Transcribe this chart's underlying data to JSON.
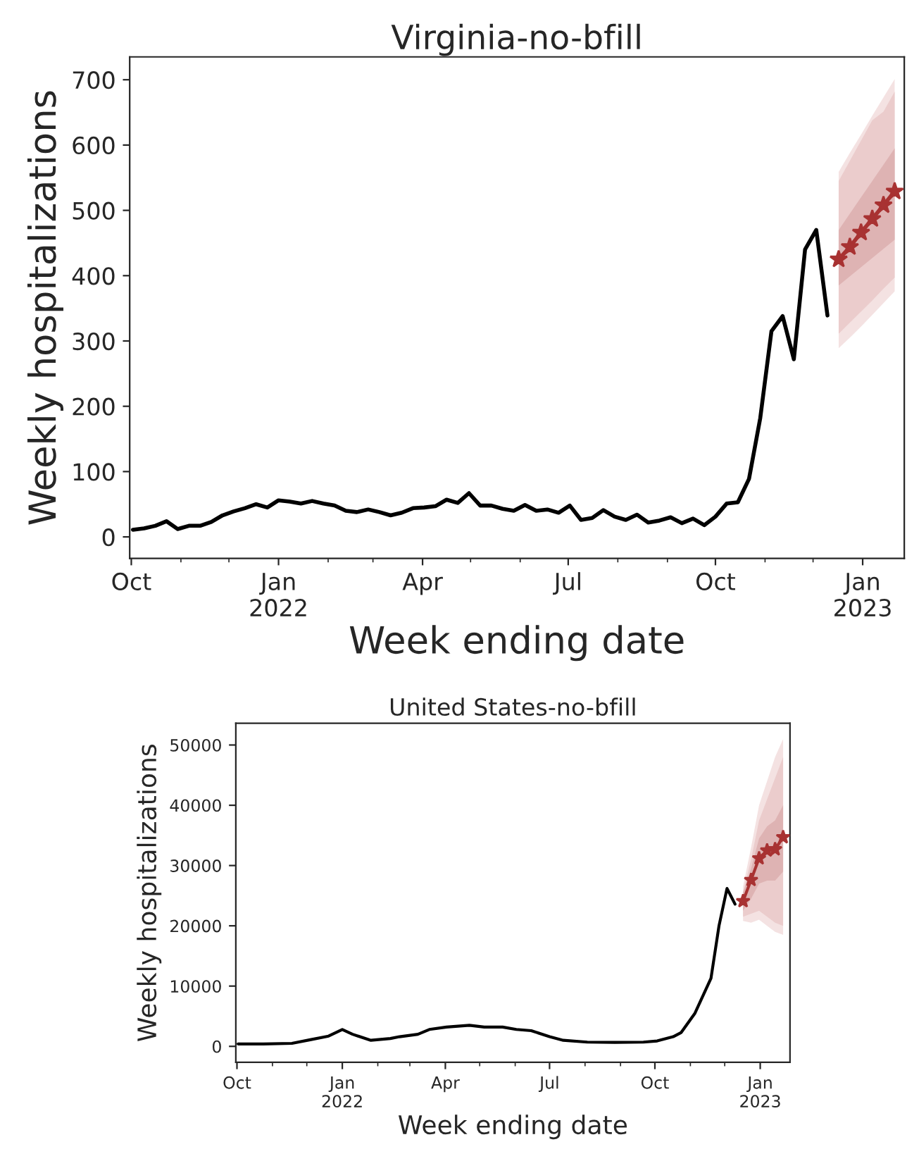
{
  "chart_data": [
    {
      "type": "line",
      "title": "Virginia-no-bfill",
      "xlabel": "Week ending date",
      "ylabel": "Weekly hospitalizations",
      "xlim": [
        "2021-09-30",
        "2023-01-27"
      ],
      "ylim": [
        -33,
        735
      ],
      "xticks": [
        {
          "value": "2021-10-01",
          "label": "Oct"
        },
        {
          "value": "2022-01-01",
          "label": "Jan\n2022"
        },
        {
          "value": "2022-04-01",
          "label": "Apr"
        },
        {
          "value": "2022-07-01",
          "label": "Jul"
        },
        {
          "value": "2022-10-01",
          "label": "Oct"
        },
        {
          "value": "2023-01-01",
          "label": "Jan\n2023"
        }
      ],
      "yticks": [
        0,
        100,
        200,
        300,
        400,
        500,
        600,
        700
      ],
      "grid": false,
      "legend": false,
      "series": [
        {
          "color": "#000000",
          "marker": "none",
          "x": [
            "2021-10-02",
            "2021-10-09",
            "2021-10-16",
            "2021-10-23",
            "2021-10-30",
            "2021-11-06",
            "2021-11-13",
            "2021-11-20",
            "2021-11-27",
            "2021-12-04",
            "2021-12-11",
            "2021-12-18",
            "2021-12-25",
            "2022-01-01",
            "2022-01-08",
            "2022-01-15",
            "2022-01-22",
            "2022-01-29",
            "2022-02-05",
            "2022-02-12",
            "2022-02-19",
            "2022-02-26",
            "2022-03-05",
            "2022-03-12",
            "2022-03-19",
            "2022-03-26",
            "2022-04-02",
            "2022-04-09",
            "2022-04-16",
            "2022-04-23",
            "2022-04-30",
            "2022-05-07",
            "2022-05-14",
            "2022-05-21",
            "2022-05-28",
            "2022-06-04",
            "2022-06-11",
            "2022-06-18",
            "2022-06-25",
            "2022-07-02",
            "2022-07-09",
            "2022-07-16",
            "2022-07-23",
            "2022-07-30",
            "2022-08-06",
            "2022-08-13",
            "2022-08-20",
            "2022-08-27",
            "2022-09-03",
            "2022-09-10",
            "2022-09-17",
            "2022-09-24",
            "2022-10-01",
            "2022-10-08",
            "2022-10-15",
            "2022-10-22",
            "2022-10-29",
            "2022-11-05",
            "2022-11-12",
            "2022-11-19",
            "2022-11-26",
            "2022-12-03",
            "2022-12-10"
          ],
          "values": [
            11,
            13,
            17,
            24,
            12,
            17,
            17,
            23,
            33,
            39,
            44,
            50,
            45,
            56,
            54,
            51,
            55,
            51,
            48,
            40,
            38,
            42,
            38,
            33,
            37,
            44,
            45,
            47,
            57,
            52,
            67,
            48,
            48,
            43,
            40,
            49,
            40,
            42,
            37,
            48,
            26,
            29,
            41,
            31,
            26,
            34,
            22,
            25,
            30,
            21,
            28,
            18,
            31,
            51,
            53,
            89,
            182,
            315,
            338,
            272,
            440,
            470,
            339
          ]
        },
        {
          "color": "#f4e2e2",
          "x": [
            "2022-12-17",
            "2022-12-24",
            "2022-12-31",
            "2023-01-07",
            "2023-01-14",
            "2023-01-21"
          ],
          "values": [
            null,
            null,
            null,
            null,
            null,
            null
          ],
          "lower": [
            289,
            305,
            322,
            340,
            358,
            376
          ],
          "upper": [
            559,
            588,
            616,
            645,
            673,
            701
          ]
        },
        {
          "color": "#ebcccc",
          "x": [
            "2022-12-17",
            "2022-12-24",
            "2022-12-31",
            "2023-01-07",
            "2023-01-14",
            "2023-01-21"
          ],
          "values": [
            null,
            null,
            null,
            null,
            null,
            null
          ],
          "lower": [
            311,
            328,
            345,
            362,
            380,
            397
          ],
          "upper": [
            545,
            576,
            607,
            638,
            651,
            682
          ]
        },
        {
          "color": "#deb3b3",
          "x": [
            "2022-12-17",
            "2022-12-24",
            "2022-12-31",
            "2023-01-07",
            "2023-01-14",
            "2023-01-21"
          ],
          "values": [
            null,
            null,
            null,
            null,
            null,
            null
          ],
          "lower": [
            385,
            399,
            413,
            427,
            441,
            455
          ],
          "upper": [
            470,
            495,
            520,
            545,
            570,
            595
          ]
        },
        {
          "color": "#a83232",
          "marker": "star",
          "x": [
            "2022-12-17",
            "2022-12-24",
            "2022-12-31",
            "2023-01-07",
            "2023-01-14",
            "2023-01-21"
          ],
          "values": [
            425,
            444,
            466,
            487,
            508,
            529
          ]
        }
      ]
    },
    {
      "type": "line",
      "title": "United States-no-bfill",
      "xlabel": "Week ending date",
      "ylabel": "Weekly hospitalizations",
      "xlim": [
        "2021-09-30",
        "2023-01-27"
      ],
      "ylim": [
        -2650,
        53600
      ],
      "xticks": [
        {
          "value": "2021-10-01",
          "label": "Oct"
        },
        {
          "value": "2022-01-01",
          "label": "Jan\n2022"
        },
        {
          "value": "2022-04-01",
          "label": "Apr"
        },
        {
          "value": "2022-07-01",
          "label": "Jul"
        },
        {
          "value": "2022-10-01",
          "label": "Oct"
        },
        {
          "value": "2023-01-01",
          "label": "Jan\n2023"
        }
      ],
      "yticks": [
        0,
        10000,
        20000,
        30000,
        40000,
        50000
      ],
      "grid": false,
      "legend": false,
      "series": [
        {
          "color": "#000000",
          "marker": "none",
          "x": [
            "2021-10-02",
            "2021-10-24",
            "2021-11-18",
            "2021-12-04",
            "2021-12-20",
            "2022-01-01",
            "2022-01-10",
            "2022-01-26",
            "2022-02-12",
            "2022-02-20",
            "2022-03-08",
            "2022-03-18",
            "2022-04-02",
            "2022-04-22",
            "2022-05-05",
            "2022-05-21",
            "2022-06-02",
            "2022-06-15",
            "2022-07-01",
            "2022-07-13",
            "2022-08-03",
            "2022-08-27",
            "2022-09-21",
            "2022-10-03",
            "2022-10-17",
            "2022-10-24",
            "2022-11-05",
            "2022-11-19",
            "2022-11-26",
            "2022-12-03",
            "2022-12-10"
          ],
          "values": [
            400,
            400,
            500,
            1100,
            1700,
            2800,
            2000,
            1000,
            1300,
            1600,
            2000,
            2800,
            3200,
            3500,
            3200,
            3200,
            2800,
            2600,
            1600,
            1000,
            700,
            650,
            700,
            900,
            1600,
            2300,
            5500,
            11300,
            20000,
            26200,
            23600
          ]
        },
        {
          "color": "#f4e2e2",
          "x": [
            "2022-12-17",
            "2022-12-24",
            "2022-12-31",
            "2023-01-07",
            "2023-01-14",
            "2023-01-21"
          ],
          "values": [
            null,
            null,
            null,
            null,
            null,
            null
          ],
          "lower": [
            20800,
            20500,
            21000,
            20000,
            19000,
            18500
          ],
          "upper": [
            26500,
            33000,
            40000,
            44000,
            48000,
            51000
          ]
        },
        {
          "color": "#ebcccc",
          "x": [
            "2022-12-17",
            "2022-12-24",
            "2022-12-31",
            "2023-01-07",
            "2023-01-14",
            "2023-01-21"
          ],
          "values": [
            null,
            null,
            null,
            null,
            null,
            null
          ],
          "lower": [
            21500,
            22000,
            22500,
            21500,
            20500,
            20000
          ],
          "upper": [
            25500,
            31000,
            37500,
            41000,
            44500,
            48000
          ]
        },
        {
          "color": "#deb3b3",
          "x": [
            "2022-12-17",
            "2022-12-24",
            "2022-12-31",
            "2023-01-07",
            "2023-01-14",
            "2023-01-21"
          ],
          "values": [
            null,
            null,
            null,
            null,
            null,
            null
          ],
          "lower": [
            22500,
            24500,
            27000,
            27500,
            27500,
            29000
          ],
          "upper": [
            25500,
            29500,
            34500,
            36500,
            37500,
            40000
          ]
        },
        {
          "color": "#a83232",
          "marker": "star",
          "x": [
            "2022-12-17",
            "2022-12-24",
            "2022-12-31",
            "2023-01-07",
            "2023-01-14",
            "2023-01-21"
          ],
          "values": [
            24100,
            27600,
            31200,
            32500,
            32700,
            34700
          ]
        }
      ]
    }
  ]
}
